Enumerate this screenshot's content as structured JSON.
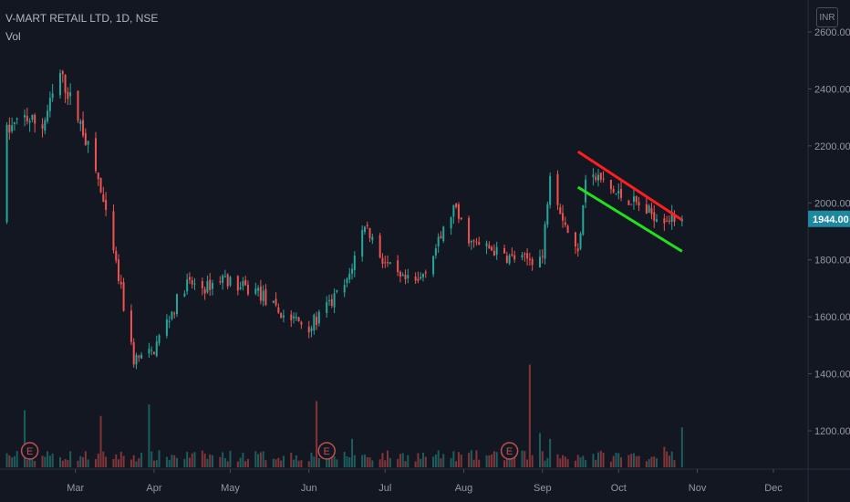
{
  "legend": {
    "symbol_line": "V-MART RETAIL LTD, 1D, NSE",
    "volume_label": "Vol"
  },
  "currency_badge": "INR",
  "colors": {
    "background": "#131722",
    "up": "#26a69a",
    "down": "#ef5350",
    "resistance_line": "#ff1e1e",
    "support_line": "#22e01e",
    "last_price_bg": "#1e88a0"
  },
  "chart_data": {
    "type": "candlestick",
    "title": "V-MART RETAIL LTD, 1D, NSE",
    "x_tick_labels": [
      "Mar",
      "Apr",
      "May",
      "Jun",
      "Jul",
      "Aug",
      "Sep",
      "Oct",
      "Nov",
      "Dec"
    ],
    "y_tick_labels": [
      "1200.00",
      "1400.00",
      "1600.00",
      "1800.00",
      "2000.00",
      "2200.00",
      "2400.00",
      "2600.00"
    ],
    "ylim": [
      1080,
      2620
    ],
    "last_price": 1944,
    "last_price_label": "1944.00",
    "earnings_markers": [
      {
        "label": "E",
        "date": "2020-02-12"
      },
      {
        "label": "E",
        "date": "2020-06-08"
      },
      {
        "label": "E",
        "date": "2020-08-19"
      }
    ],
    "trend_lines": [
      {
        "name": "resistance",
        "start": {
          "date": "2020-09-15",
          "price": 2180
        },
        "end": {
          "date": "2020-10-26",
          "price": 1940
        }
      },
      {
        "name": "support",
        "start": {
          "date": "2020-09-15",
          "price": 2055
        },
        "end": {
          "date": "2020-10-26",
          "price": 1830
        }
      }
    ],
    "price_path": [
      [
        "2020-02-03",
        2250
      ],
      [
        "2020-02-10",
        2300
      ],
      [
        "2020-02-17",
        2270
      ],
      [
        "2020-02-24",
        2450
      ],
      [
        "2020-03-03",
        2280
      ],
      [
        "2020-03-10",
        2080
      ],
      [
        "2020-03-17",
        1780
      ],
      [
        "2020-03-24",
        1450
      ],
      [
        "2020-03-31",
        1470
      ],
      [
        "2020-04-07",
        1600
      ],
      [
        "2020-04-14",
        1720
      ],
      [
        "2020-04-21",
        1700
      ],
      [
        "2020-04-28",
        1740
      ],
      [
        "2020-05-05",
        1700
      ],
      [
        "2020-05-12",
        1690
      ],
      [
        "2020-05-19",
        1620
      ],
      [
        "2020-05-26",
        1590
      ],
      [
        "2020-06-02",
        1570
      ],
      [
        "2020-06-09",
        1640
      ],
      [
        "2020-06-16",
        1720
      ],
      [
        "2020-06-23",
        1930
      ],
      [
        "2020-06-30",
        1800
      ],
      [
        "2020-07-07",
        1730
      ],
      [
        "2020-07-14",
        1720
      ],
      [
        "2020-07-21",
        1840
      ],
      [
        "2020-07-28",
        1980
      ],
      [
        "2020-08-04",
        1860
      ],
      [
        "2020-08-11",
        1840
      ],
      [
        "2020-08-18",
        1810
      ],
      [
        "2020-08-25",
        1800
      ],
      [
        "2020-09-01",
        1810
      ],
      [
        "2020-09-04",
        2120
      ],
      [
        "2020-09-08",
        1980
      ],
      [
        "2020-09-11",
        1900
      ],
      [
        "2020-09-15",
        1820
      ],
      [
        "2020-09-18",
        2100
      ],
      [
        "2020-09-24",
        2080
      ],
      [
        "2020-09-30",
        2030
      ],
      [
        "2020-10-06",
        2010
      ],
      [
        "2020-10-12",
        1970
      ],
      [
        "2020-10-18",
        1950
      ],
      [
        "2020-10-24",
        1944
      ]
    ],
    "volume_spikes": [
      [
        "2020-02-10",
        0.5
      ],
      [
        "2020-03-11",
        0.45
      ],
      [
        "2020-03-30",
        0.55
      ],
      [
        "2020-06-04",
        0.58
      ],
      [
        "2020-06-18",
        0.25
      ],
      [
        "2020-08-27",
        0.9
      ],
      [
        "2020-08-31",
        0.3
      ],
      [
        "2020-09-05",
        0.25
      ],
      [
        "2020-10-18",
        0.18
      ],
      [
        "2020-11-11",
        0.35
      ]
    ]
  }
}
